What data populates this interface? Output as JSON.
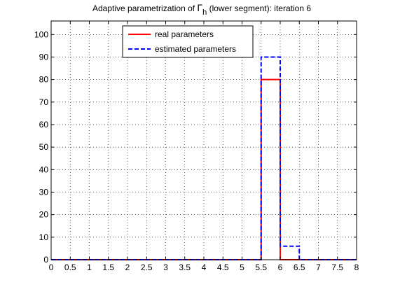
{
  "chart_data": {
    "type": "line",
    "title": {
      "before": "Adaptive parametrization of ",
      "symbol": "Γ",
      "subscript": "h",
      "after": " (lower segment): iteration 6"
    },
    "xlabel": "",
    "ylabel": "",
    "xlim": [
      0,
      8
    ],
    "ylim": [
      0,
      106
    ],
    "xticks": [
      "0",
      "0.5",
      "1",
      "1.5",
      "2",
      "2.5",
      "3",
      "3.5",
      "4",
      "4.5",
      "5",
      "5.5",
      "6",
      "6.5",
      "7",
      "7.5",
      "8"
    ],
    "yticks": [
      "0",
      "10",
      "20",
      "30",
      "40",
      "50",
      "60",
      "70",
      "80",
      "90",
      "100"
    ],
    "grid": true,
    "legend_position": "top-center",
    "series": [
      {
        "name": "real parameters",
        "color": "#ff0000",
        "style": "solid",
        "x": [
          0,
          5.5,
          5.5,
          6,
          6,
          8
        ],
        "y": [
          0,
          0,
          80,
          80,
          0,
          0
        ]
      },
      {
        "name": "estimated parameters",
        "color": "#0000ff",
        "style": "dashed",
        "x": [
          0,
          5.5,
          5.5,
          6,
          6,
          6.5,
          6.5,
          8
        ],
        "y": [
          0,
          0,
          90,
          90,
          6,
          6,
          0,
          0
        ]
      }
    ]
  }
}
